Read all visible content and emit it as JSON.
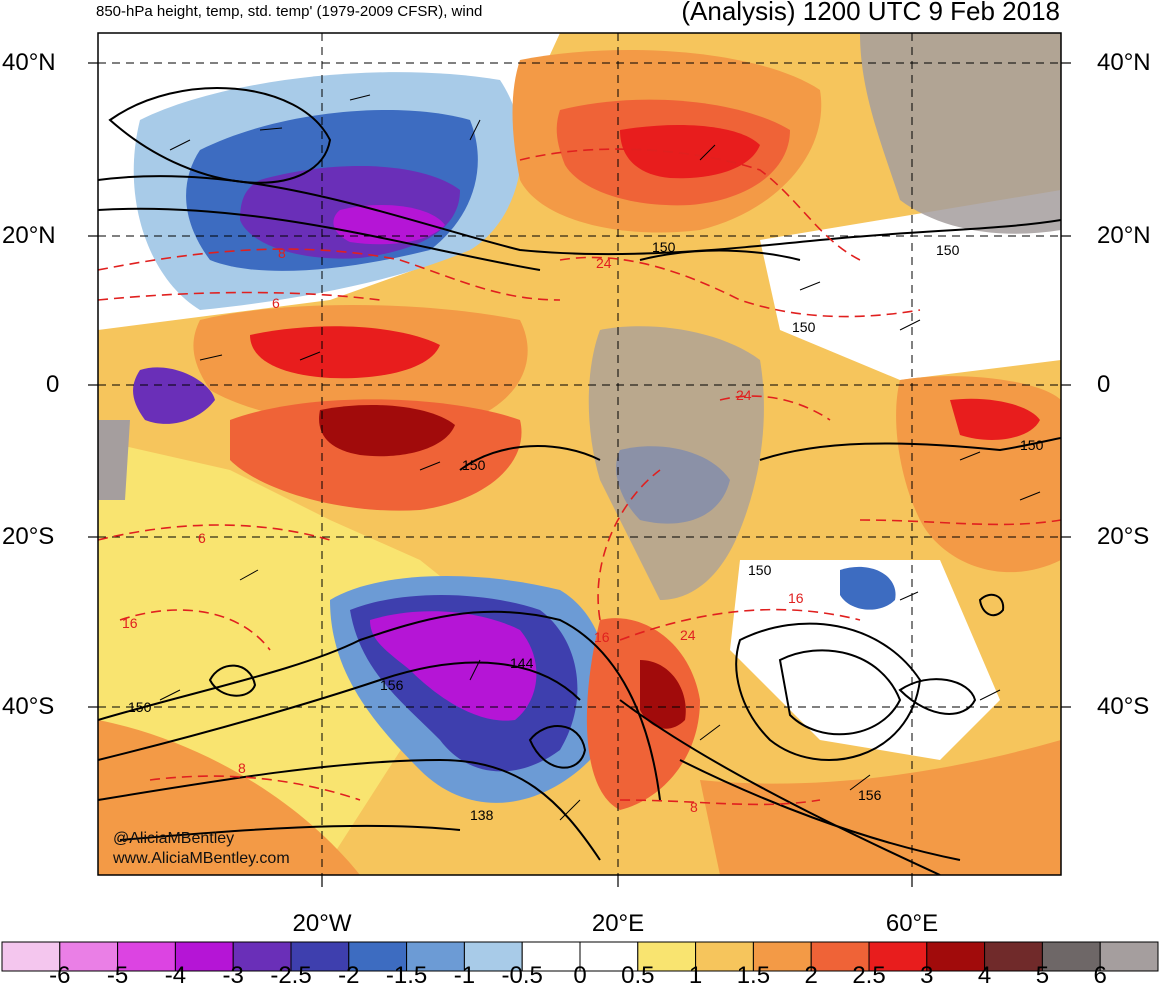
{
  "header": {
    "product": "850-hPa height, temp, std. temp' (1979-2009 CFSR), wind",
    "valid_time": "(Analysis) 1200 UTC 9 Feb 2018"
  },
  "axes": {
    "lat_labels": [
      "40°N",
      "20°N",
      "0",
      "20°S",
      "40°S"
    ],
    "lon_labels": [
      "20°W",
      "20°E",
      "60°E"
    ]
  },
  "contour_labels": {
    "height": [
      "150",
      "150",
      "150",
      "150",
      "150",
      "150",
      "156",
      "144",
      "138",
      "150",
      "156"
    ],
    "temp": [
      "8",
      "6",
      "24",
      "6",
      "16",
      "16",
      "16",
      "24",
      "24",
      "8",
      "8"
    ]
  },
  "credits": {
    "twitter": "@AliciaMBentley",
    "website": "www.AliciaMBentley.com"
  },
  "colorbar": {
    "labels": [
      "-6",
      "-5",
      "-4",
      "-3",
      "-2.5",
      "-2",
      "-1.5",
      "-1",
      "-0.5",
      "0",
      "0.5",
      "1",
      "1.5",
      "2",
      "2.5",
      "3",
      "4",
      "5",
      "6"
    ],
    "colors": [
      "#f4c6ee",
      "#ea7fe6",
      "#dc44e2",
      "#b515d6",
      "#6a2fb8",
      "#3e3fae",
      "#3d6cc1",
      "#6c9bd5",
      "#a8cbe8",
      "#ffffff",
      "#ffffff",
      "#f9e470",
      "#f6c55c",
      "#f39a46",
      "#ef6337",
      "#e81d1d",
      "#a10b0b",
      "#702a2a",
      "#6e6767",
      "#a59e9e"
    ]
  }
}
